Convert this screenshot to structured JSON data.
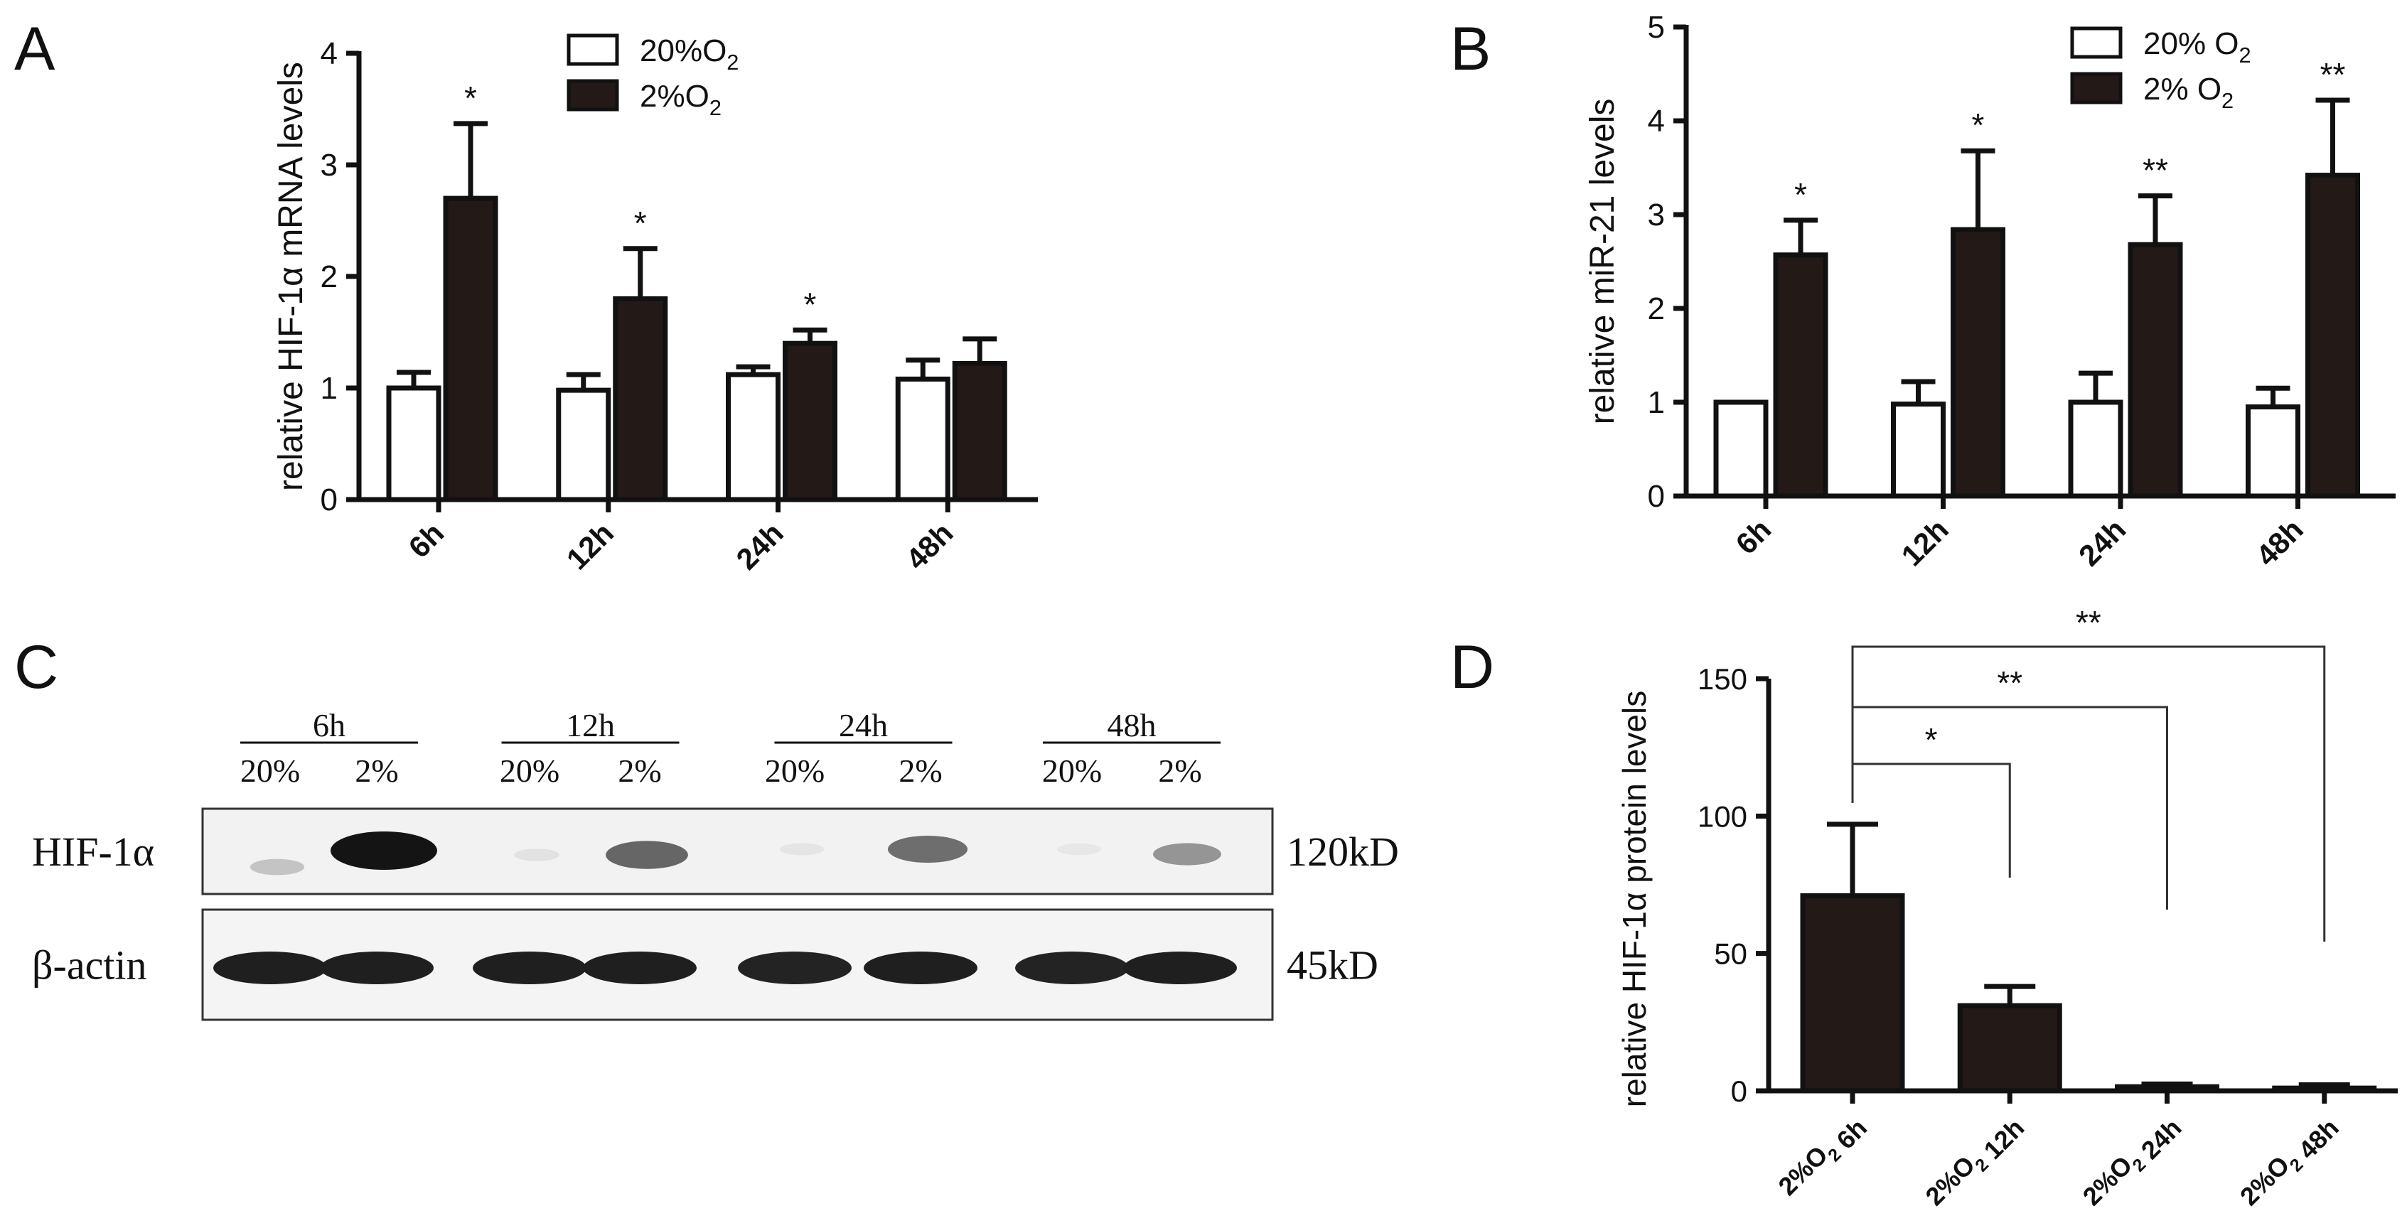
{
  "chart_data": [
    {
      "panel": "A",
      "type": "bar",
      "title": "",
      "ylabel": "relative HIF-1α  mRNA levels",
      "xlabel": "",
      "categories": [
        "6h",
        "12h",
        "24h",
        "48h"
      ],
      "ylim": [
        0,
        4
      ],
      "yticks": [
        "0",
        "1",
        "2",
        "3",
        "4"
      ],
      "legend_position": "top-center",
      "series": [
        {
          "name": "20%O₂",
          "fill": "#ffffff",
          "values": [
            1.0,
            0.98,
            1.12,
            1.08
          ],
          "errors": [
            0.14,
            0.14,
            0.07,
            0.17
          ]
        },
        {
          "name": "2%O₂",
          "fill": "#231916",
          "values": [
            2.7,
            1.8,
            1.4,
            1.22
          ],
          "errors": [
            0.67,
            0.45,
            0.12,
            0.22
          ]
        }
      ],
      "significance": [
        "*",
        "*",
        "*",
        ""
      ]
    },
    {
      "panel": "B",
      "type": "bar",
      "title": "",
      "ylabel": "relative miR-21 levels",
      "xlabel": "",
      "categories": [
        "6h",
        "12h",
        "24h",
        "48h"
      ],
      "ylim": [
        0,
        5
      ],
      "yticks": [
        "0",
        "1",
        "2",
        "3",
        "4",
        "5"
      ],
      "legend_position": "top-right",
      "series": [
        {
          "name": "20% O₂",
          "fill": "#ffffff",
          "values": [
            1.0,
            0.98,
            1.0,
            0.95
          ],
          "errors": [
            0.0,
            0.24,
            0.31,
            0.2
          ]
        },
        {
          "name": "2%  O₂",
          "fill": "#231916",
          "values": [
            2.57,
            2.84,
            2.68,
            3.42
          ],
          "errors": [
            0.37,
            0.84,
            0.52,
            0.8
          ]
        }
      ],
      "significance": [
        "*",
        "*",
        "**",
        "**"
      ]
    },
    {
      "panel": "D",
      "type": "bar",
      "title": "",
      "ylabel": "relative  HIF-1α  protein levels",
      "xlabel": "",
      "categories": [
        "2%O₂ 6h",
        "2%O₂ 12h",
        "2%O₂ 24h",
        "2%O₂ 48h"
      ],
      "ylim": [
        0,
        150
      ],
      "yticks": [
        "0",
        "50",
        "100",
        "150"
      ],
      "series": [
        {
          "fill": "#231916",
          "values": [
            71,
            31,
            1.5,
            1.0
          ],
          "errors": [
            26,
            7,
            1.0,
            1.2
          ]
        }
      ],
      "comparisons": [
        {
          "from": 0,
          "to": 1,
          "label": "*"
        },
        {
          "from": 0,
          "to": 2,
          "label": "**"
        },
        {
          "from": 0,
          "to": 3,
          "label": "**"
        }
      ]
    }
  ],
  "panel_labels": {
    "a": "A",
    "b": "B",
    "c": "C",
    "d": "D"
  },
  "blot": {
    "timepoints": [
      "6h",
      "12h",
      "24h",
      "48h"
    ],
    "lane_labels": [
      "20%",
      "2%",
      "20%",
      "2%",
      "20%",
      "2%",
      "20%",
      "2%"
    ],
    "rows": [
      {
        "name": "HIF-1α",
        "size": "120kD",
        "intensities": [
          0.18,
          1.0,
          0.04,
          0.62,
          0.03,
          0.58,
          0.02,
          0.4
        ]
      },
      {
        "name": "β-actin",
        "size": "45kD",
        "intensities": [
          0.95,
          0.95,
          0.95,
          0.95,
          0.93,
          0.95,
          0.93,
          0.95
        ]
      }
    ]
  }
}
